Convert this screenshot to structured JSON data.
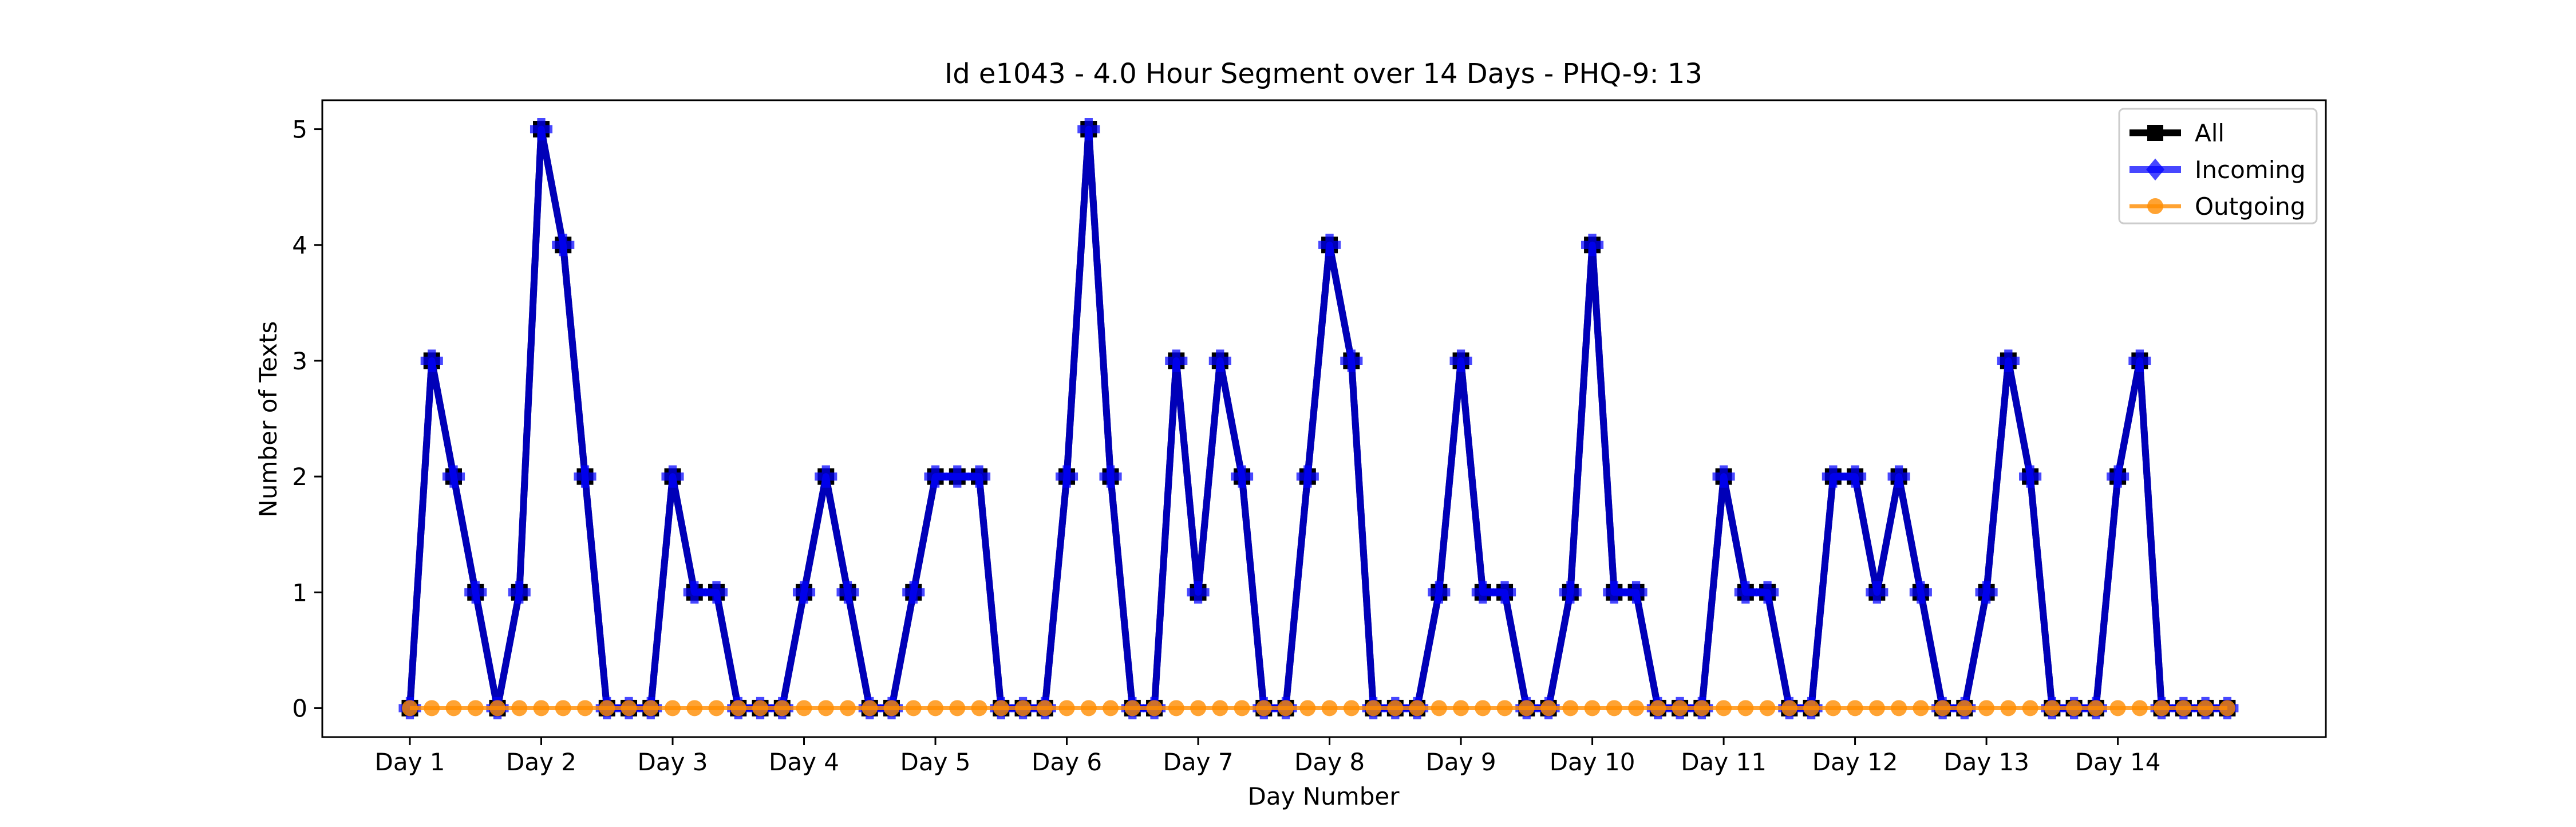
{
  "chart_data": {
    "type": "line",
    "title": "Id e1043 - 4.0 Hour Segment over 14 Days - PHQ-9: 13",
    "xlabel": "Day Number",
    "ylabel": "Number of Texts",
    "x_tick_labels": [
      "Day 1",
      "Day 2",
      "Day 3",
      "Day 4",
      "Day 5",
      "Day 6",
      "Day 7",
      "Day 8",
      "Day 9",
      "Day 10",
      "Day 11",
      "Day 12",
      "Day 13",
      "Day 14"
    ],
    "y_ticks": [
      0,
      1,
      2,
      3,
      4,
      5
    ],
    "xlim": [
      -4,
      87.5
    ],
    "ylim": [
      -0.25,
      5.25
    ],
    "points_per_day": 6,
    "grid": false,
    "legend_position": "top-right",
    "series": [
      {
        "name": "All",
        "color": "#000000",
        "marker": "square",
        "values": [
          0,
          3,
          2,
          1,
          0,
          1,
          5,
          4,
          2,
          0,
          0,
          0,
          2,
          1,
          1,
          0,
          0,
          0,
          1,
          2,
          1,
          0,
          0,
          1,
          2,
          2,
          2,
          0,
          0,
          0,
          2,
          5,
          2,
          0,
          0,
          3,
          1,
          3,
          2,
          0,
          0,
          2,
          4,
          3,
          0,
          0,
          0,
          1,
          3,
          1,
          1,
          0,
          0,
          1,
          4,
          1,
          1,
          0,
          0,
          0,
          2,
          1,
          1,
          0,
          0,
          2,
          2,
          1,
          2,
          1,
          0,
          0,
          1,
          3,
          2,
          0,
          0,
          0,
          2,
          3,
          0,
          0,
          0,
          0
        ]
      },
      {
        "name": "Incoming",
        "color": "#0000ff",
        "marker": "diamond",
        "values": [
          0,
          3,
          2,
          1,
          0,
          1,
          5,
          4,
          2,
          0,
          0,
          0,
          2,
          1,
          1,
          0,
          0,
          0,
          1,
          2,
          1,
          0,
          0,
          1,
          2,
          2,
          2,
          0,
          0,
          0,
          2,
          5,
          2,
          0,
          0,
          3,
          1,
          3,
          2,
          0,
          0,
          2,
          4,
          3,
          0,
          0,
          0,
          1,
          3,
          1,
          1,
          0,
          0,
          1,
          4,
          1,
          1,
          0,
          0,
          0,
          2,
          1,
          1,
          0,
          0,
          2,
          2,
          1,
          2,
          1,
          0,
          0,
          1,
          3,
          2,
          0,
          0,
          0,
          2,
          3,
          0,
          0,
          0,
          0
        ]
      },
      {
        "name": "Outgoing",
        "color": "#ff8c00",
        "marker": "circle",
        "values": [
          0,
          0,
          0,
          0,
          0,
          0,
          0,
          0,
          0,
          0,
          0,
          0,
          0,
          0,
          0,
          0,
          0,
          0,
          0,
          0,
          0,
          0,
          0,
          0,
          0,
          0,
          0,
          0,
          0,
          0,
          0,
          0,
          0,
          0,
          0,
          0,
          0,
          0,
          0,
          0,
          0,
          0,
          0,
          0,
          0,
          0,
          0,
          0,
          0,
          0,
          0,
          0,
          0,
          0,
          0,
          0,
          0,
          0,
          0,
          0,
          0,
          0,
          0,
          0,
          0,
          0,
          0,
          0,
          0,
          0,
          0,
          0,
          0,
          0,
          0,
          0,
          0,
          0,
          0,
          0,
          0,
          0,
          0,
          0
        ]
      }
    ]
  }
}
